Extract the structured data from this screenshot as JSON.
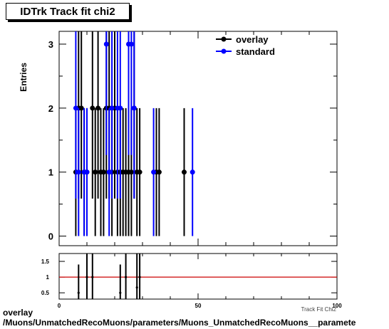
{
  "title": "IDTrk Track fit chi2",
  "footer": {
    "line1": "overlay",
    "line2": "/Muons/UnmatchedRecoMuons/parameters/Muons_UnmatchedRecoMuons__paramete"
  },
  "chart_data": [
    {
      "type": "scatter",
      "title": "IDTrk Track fit chi2",
      "ylabel": "Entries",
      "xlabel": "Track Fit Chi2",
      "xlim": [
        0,
        100
      ],
      "ylim": [
        -0.15,
        3.2
      ],
      "yticks": [
        0,
        1,
        2,
        3
      ],
      "legend": {
        "placement": "top-right",
        "entries": [
          "overlay",
          "standard"
        ]
      },
      "series": [
        {
          "name": "overlay",
          "color": "#000000",
          "x": [
            6,
            7,
            8,
            9,
            10,
            12,
            13,
            14,
            15,
            16,
            17,
            18,
            19,
            20,
            21,
            22,
            23,
            24,
            25,
            26,
            27,
            28,
            29,
            35,
            36,
            45
          ],
          "y": [
            1,
            2,
            2,
            1,
            1,
            2,
            1,
            2,
            1,
            1,
            2,
            2,
            1,
            2,
            1,
            1,
            1,
            1,
            1,
            1,
            2,
            1,
            1,
            1,
            1,
            1
          ]
        },
        {
          "name": "standard",
          "color": "#0000ff",
          "x": [
            6,
            7,
            9,
            10,
            17,
            18,
            19,
            21,
            22,
            25,
            26,
            27,
            34,
            48
          ],
          "y": [
            2,
            1,
            1,
            1,
            3,
            1,
            2,
            2,
            2,
            3,
            3,
            2,
            1,
            1
          ]
        }
      ]
    },
    {
      "type": "scatter",
      "xlabel": "Track Fit Chi2",
      "xlim": [
        0,
        100
      ],
      "ylim": [
        0.3,
        1.75
      ],
      "xticks": [
        0,
        50,
        100
      ],
      "yticks": [
        0.5,
        1,
        1.5
      ],
      "reference_line": 1,
      "series": [
        {
          "name": "ratio",
          "color": "#000000",
          "x": [
            7,
            10,
            12,
            22,
            24,
            28,
            29
          ],
          "y": [
            0.5,
            1,
            1,
            0.5,
            1,
            0.67,
            1
          ]
        }
      ]
    }
  ],
  "colors": {
    "reference_line": "#cc0000",
    "overlay": "#000000",
    "standard": "#0000ff"
  }
}
